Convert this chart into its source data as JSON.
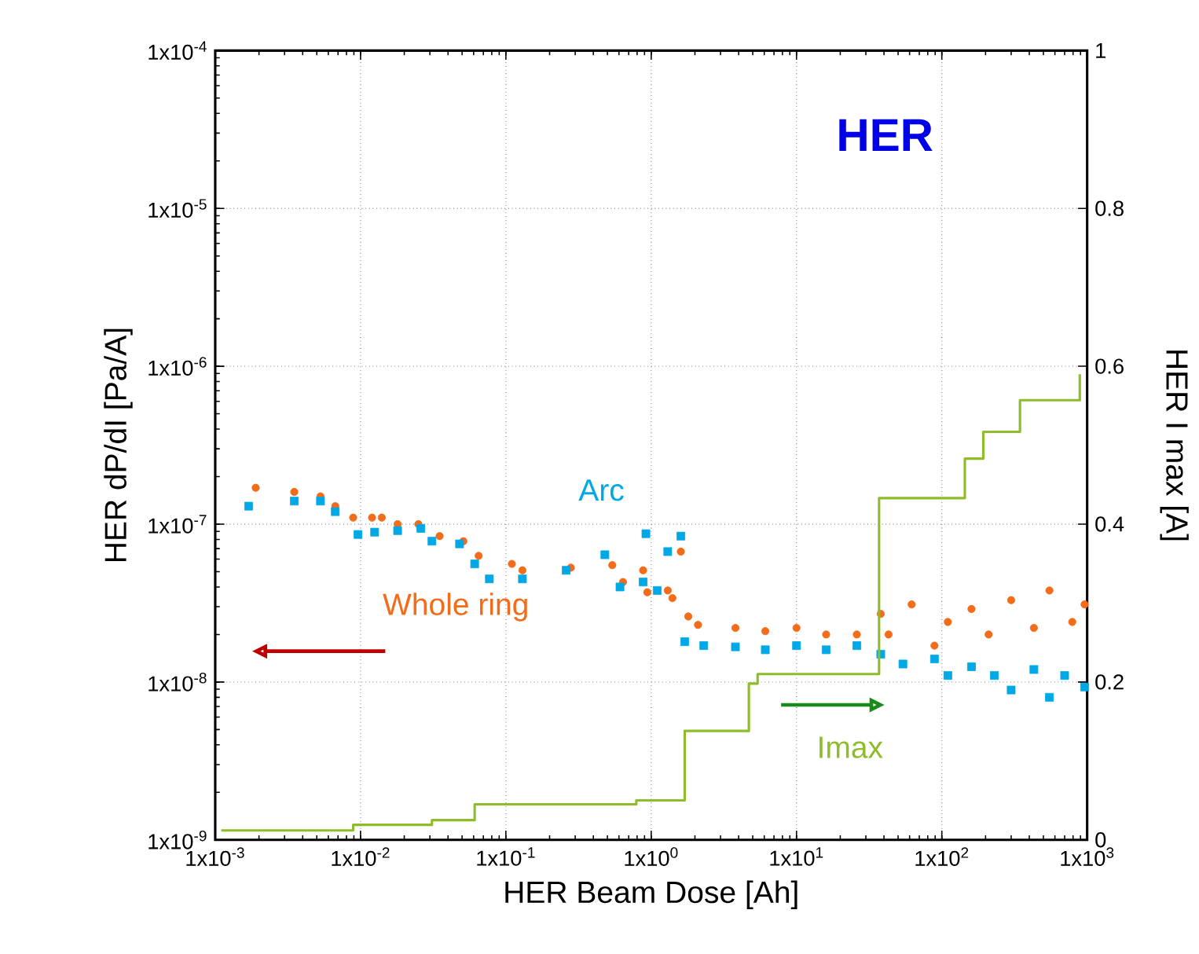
{
  "chart_data": {
    "type": "scatter",
    "annotations": [
      "HER"
    ],
    "xlabel": "HER Beam Dose [Ah]",
    "ylabel": "HER dP/dI [Pa/A]",
    "y2label": "HER I max [A]",
    "log": "xy",
    "grid": true,
    "legend": false,
    "xlim": [
      0.001,
      1000
    ],
    "ylim": [
      1e-09,
      0.0001
    ],
    "y2lim": [
      0,
      1
    ],
    "xticks": [
      {
        "value": 0.001,
        "label": "1x10$^{-3}$"
      },
      {
        "value": 0.01,
        "label": "1x10$^{-2}$"
      },
      {
        "value": 0.1,
        "label": "1x10$^{-1}$"
      },
      {
        "value": 1,
        "label": "1x10$^{0}$"
      },
      {
        "value": 10,
        "label": "1x10$^{1}$"
      },
      {
        "value": 100,
        "label": "1x10$^{2}$"
      },
      {
        "value": 1000,
        "label": "1x10$^{3}$"
      }
    ],
    "yticks": [
      {
        "value": 1e-09,
        "label": "1x10$^{-9}$"
      },
      {
        "value": 1e-08,
        "label": "1x10$^{-8}$"
      },
      {
        "value": 1e-07,
        "label": "1x10$^{-7}$"
      },
      {
        "value": 1e-06,
        "label": "1x10$^{-6}$"
      },
      {
        "value": 1e-05,
        "label": "1x10$^{-5}$"
      },
      {
        "value": 0.0001,
        "label": "1x10$^{-4}$"
      }
    ],
    "y2ticks": [
      0,
      0.2,
      0.4,
      0.6,
      0.8,
      1
    ],
    "series": [
      {
        "name": "Whole ring",
        "marker": "circle",
        "color": "#f26c1a",
        "x": [
          0.0019,
          0.0035,
          0.0053,
          0.0067,
          0.0089,
          0.012,
          0.014,
          0.018,
          0.025,
          0.035,
          0.051,
          0.065,
          0.11,
          0.13,
          0.28,
          0.54,
          0.64,
          0.88,
          0.94,
          1.3,
          1.4,
          1.6,
          1.8,
          2.1,
          3.8,
          6.1,
          10,
          16,
          26,
          38,
          43,
          62,
          89,
          110,
          160,
          210,
          300,
          430,
          550,
          790,
          960
        ],
        "values": [
          1.7e-07,
          1.6e-07,
          1.5e-07,
          1.3e-07,
          1.1e-07,
          1.1e-07,
          1.1e-07,
          1e-07,
          1e-07,
          8.4e-08,
          7.8e-08,
          6.3e-08,
          5.6e-08,
          5.1e-08,
          5.3e-08,
          5.5e-08,
          4.3e-08,
          5.1e-08,
          3.7e-08,
          3.8e-08,
          3.4e-08,
          6.7e-08,
          2.6e-08,
          2.3e-08,
          2.2e-08,
          2.1e-08,
          2.2e-08,
          2e-08,
          2e-08,
          2.7e-08,
          2e-08,
          3.1e-08,
          1.7e-08,
          2.4e-08,
          2.9e-08,
          2e-08,
          3.3e-08,
          2.2e-08,
          3.8e-08,
          2.4e-08,
          3.1e-08
        ]
      },
      {
        "name": "Arc",
        "marker": "square",
        "color": "#00a8e6",
        "x": [
          0.0017,
          0.0035,
          0.0053,
          0.0067,
          0.0096,
          0.0125,
          0.018,
          0.026,
          0.031,
          0.048,
          0.061,
          0.077,
          0.13,
          0.26,
          0.48,
          0.61,
          0.88,
          0.92,
          1.1,
          1.3,
          1.6,
          1.7,
          2.3,
          3.8,
          6.1,
          10,
          16,
          26,
          38,
          54,
          89,
          110,
          160,
          230,
          300,
          430,
          550,
          700,
          960
        ],
        "values": [
          1.3e-07,
          1.4e-07,
          1.4e-07,
          1.2e-07,
          8.6e-08,
          8.9e-08,
          9.1e-08,
          9.4e-08,
          7.8e-08,
          7.5e-08,
          5.6e-08,
          4.5e-08,
          4.5e-08,
          5.1e-08,
          6.4e-08,
          4e-08,
          4.3e-08,
          8.7e-08,
          3.8e-08,
          6.7e-08,
          8.4e-08,
          1.8e-08,
          1.7e-08,
          1.67e-08,
          1.6e-08,
          1.7e-08,
          1.6e-08,
          1.7e-08,
          1.5e-08,
          1.3e-08,
          1.4e-08,
          1.1e-08,
          1.25e-08,
          1.1e-08,
          8.9e-09,
          1.2e-08,
          8e-09,
          1.1e-08,
          9.3e-09
        ]
      },
      {
        "name": "Imax",
        "type": "step",
        "axis": "y2",
        "marker": "none",
        "color": "#8fbc2b",
        "x": [
          0.0011,
          0.0089,
          0.031,
          0.061,
          0.79,
          1.7,
          4.7,
          5.4,
          37,
          144,
          193,
          345,
          890
        ],
        "values": [
          0.012,
          0.019,
          0.025,
          0.045,
          0.05,
          0.138,
          0.198,
          0.21,
          0.433,
          0.483,
          0.517,
          0.557,
          0.59
        ]
      }
    ]
  }
}
